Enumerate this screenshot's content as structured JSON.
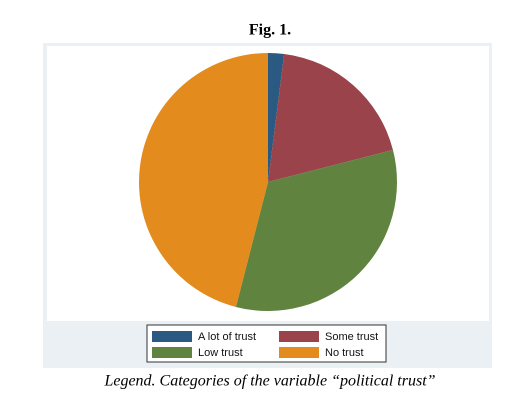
{
  "chart_data": {
    "type": "pie",
    "title": "Fig. 1.",
    "caption": "Legend. Categories of the variable “political trust”",
    "categories": [
      "A lot of trust",
      "Some trust",
      "Low trust",
      "No trust"
    ],
    "values": [
      2,
      19,
      33,
      46
    ],
    "colors": [
      "#2a5a82",
      "#9a434b",
      "#60843f",
      "#e38b1c"
    ],
    "legend": "bottom"
  }
}
